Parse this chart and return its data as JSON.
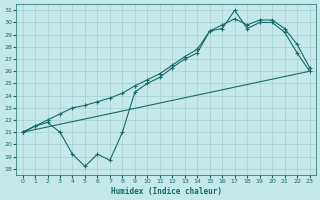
{
  "xlabel": "Humidex (Indice chaleur)",
  "bg_color": "#c5e8e8",
  "grid_color": "#a8d0d0",
  "line_color": "#1a6868",
  "xlim": [
    -0.5,
    23.5
  ],
  "ylim": [
    17.5,
    31.5
  ],
  "xticks": [
    0,
    1,
    2,
    3,
    4,
    5,
    6,
    7,
    8,
    9,
    10,
    11,
    12,
    13,
    14,
    15,
    16,
    17,
    18,
    19,
    20,
    21,
    22,
    23
  ],
  "yticks": [
    18,
    19,
    20,
    21,
    22,
    23,
    24,
    25,
    26,
    27,
    28,
    29,
    30,
    31
  ],
  "zigzag_x": [
    0,
    1,
    2,
    3,
    4,
    5,
    6,
    7,
    8,
    9,
    10,
    11,
    12,
    13,
    14,
    15,
    16,
    17,
    18,
    19,
    20,
    21,
    22,
    23
  ],
  "zigzag_y": [
    21.0,
    21.5,
    21.8,
    21.0,
    19.2,
    18.2,
    19.2,
    18.7,
    21.0,
    24.3,
    25.0,
    25.5,
    26.3,
    27.0,
    27.5,
    29.3,
    29.5,
    31.0,
    29.5,
    30.0,
    30.0,
    29.2,
    27.5,
    26.0
  ],
  "smooth_x": [
    0,
    1,
    2,
    3,
    4,
    5,
    6,
    7,
    8,
    9,
    10,
    11,
    12,
    13,
    14,
    15,
    16,
    17,
    18,
    19,
    20,
    21,
    22,
    23
  ],
  "smooth_y": [
    21.0,
    21.5,
    22.0,
    22.5,
    23.0,
    23.2,
    23.5,
    23.8,
    24.2,
    24.8,
    25.3,
    25.8,
    26.5,
    27.2,
    27.8,
    29.3,
    29.8,
    30.3,
    29.8,
    30.2,
    30.2,
    29.5,
    28.2,
    26.3
  ],
  "trend_x": [
    0,
    23
  ],
  "trend_y": [
    21.0,
    26.0
  ]
}
